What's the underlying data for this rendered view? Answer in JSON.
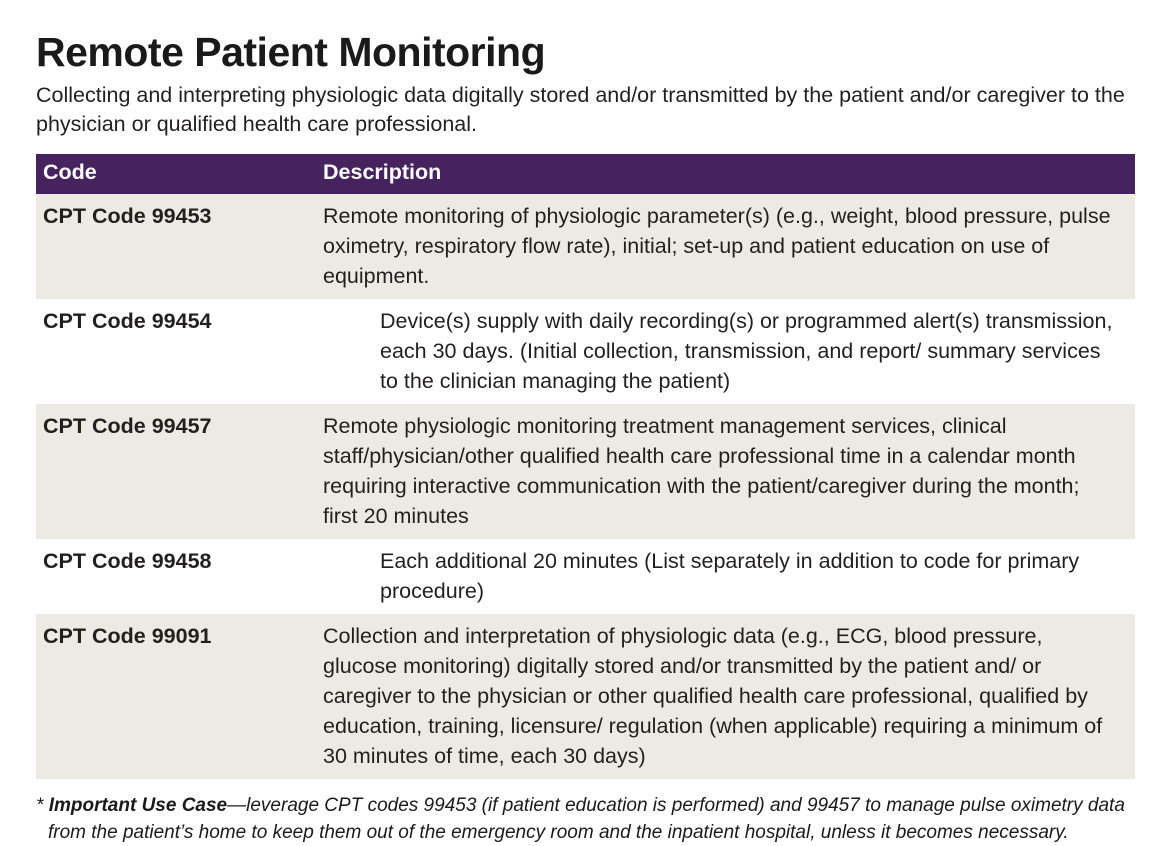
{
  "page": {
    "title": "Remote Patient Monitoring",
    "subtitle": "Collecting and interpreting physiologic data digitally stored and/or transmitted by the patient and/or caregiver to the physician or qualified health care professional."
  },
  "table": {
    "headers": {
      "code": "Code",
      "description": "Description"
    },
    "rows": [
      {
        "code": "CPT Code 99453",
        "description": "Remote monitoring of physiologic parameter(s) (e.g., weight, blood pressure, pulse oximetry, respiratory flow rate), initial; set-up and patient education on use of equipment.",
        "shaded": true,
        "indented": false
      },
      {
        "code": "CPT Code 99454",
        "description": "Device(s) supply with daily recording(s) or programmed alert(s) transmission, each 30 days. (Initial collection, transmission, and report/ summary services to the clinician managing the patient)",
        "shaded": false,
        "indented": true
      },
      {
        "code": "CPT Code 99457",
        "description": "Remote physiologic monitoring treatment management services, clinical staff/physician/other qualified health care professional time in a calendar month requiring interactive communication with the patient/caregiver during the month; first 20 minutes",
        "shaded": true,
        "indented": false
      },
      {
        "code": "CPT Code 99458",
        "description": "Each additional 20 minutes (List separately in addition to code for primary procedure)",
        "shaded": false,
        "indented": true
      },
      {
        "code": "CPT Code 99091",
        "description": "Collection and interpretation of physiologic data (e.g., ECG, blood pressure, glucose monitoring) digitally stored and/or transmitted by the patient and/ or caregiver to the physician or other qualified health care professional, qualified by education, training, licensure/ regulation (when applicable) requiring a minimum of 30 minutes of time, each 30 days)",
        "shaded": true,
        "indented": false
      }
    ]
  },
  "footnote": {
    "marker": "* ",
    "bold_lead": "Important Use Case",
    "text": "—leverage CPT codes 99453 (if patient education is performed) and 99457 to manage pulse oximetry data from the patient’s home to keep them out of the emergency room and the inpatient hospital, unless it becomes necessary."
  },
  "colors": {
    "header_bg": "#46225f",
    "shaded_row_bg": "#edeae4",
    "header_text": "#ffffff",
    "body_text": "#231f20"
  }
}
